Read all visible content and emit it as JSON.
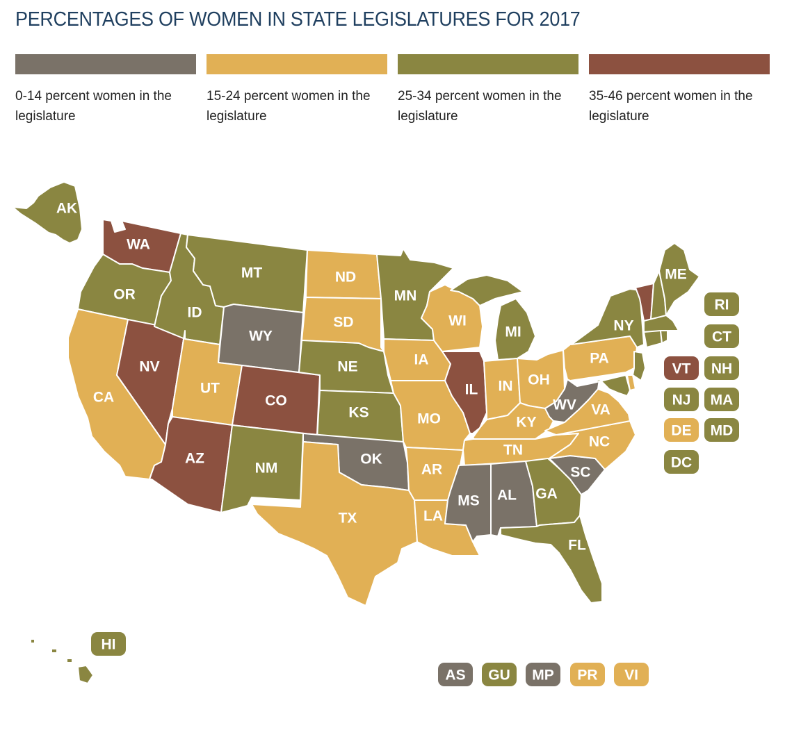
{
  "title": "PERCENTAGES OF WOMEN IN STATE LEGISLATURES FOR 2017",
  "colors": {
    "c0": "#7a7268",
    "c1": "#e1b055",
    "c2": "#8a8641",
    "c3": "#8c5140"
  },
  "legend": [
    {
      "range": "c0",
      "text": "0-14 percent women in the legislature"
    },
    {
      "range": "c1",
      "text": "15-24 percent women in the legislature"
    },
    {
      "range": "c2",
      "text": "25-34 percent women in the legislature"
    },
    {
      "range": "c3",
      "text": "35-46 percent women in the legislature"
    }
  ],
  "states": {
    "AK": "c2",
    "WA": "c3",
    "OR": "c2",
    "CA": "c1",
    "NV": "c3",
    "ID": "c2",
    "MT": "c2",
    "WY": "c0",
    "UT": "c1",
    "AZ": "c3",
    "CO": "c3",
    "NM": "c2",
    "ND": "c1",
    "SD": "c1",
    "NE": "c2",
    "KS": "c2",
    "OK": "c0",
    "TX": "c1",
    "MN": "c2",
    "IA": "c1",
    "MO": "c1",
    "AR": "c1",
    "LA": "c1",
    "WI": "c1",
    "IL": "c3",
    "MI": "c2",
    "IN": "c1",
    "OH": "c1",
    "KY": "c1",
    "TN": "c1",
    "MS": "c0",
    "AL": "c0",
    "GA": "c2",
    "FL": "c2",
    "SC": "c0",
    "NC": "c1",
    "VA": "c1",
    "WV": "c0",
    "PA": "c1",
    "NY": "c2",
    "ME": "c2",
    "VT": "c3",
    "NH": "c2",
    "MA": "c2",
    "RI": "c2",
    "CT": "c2",
    "NJ": "c2",
    "DE": "c1",
    "MD": "c2",
    "DC": "c2",
    "HI": "c2"
  },
  "badges": [
    {
      "code": "RI",
      "range": "c2"
    },
    {
      "code": "CT",
      "range": "c2"
    },
    {
      "code": "VT",
      "range": "c3"
    },
    {
      "code": "NH",
      "range": "c2"
    },
    {
      "code": "NJ",
      "range": "c2"
    },
    {
      "code": "MA",
      "range": "c2"
    },
    {
      "code": "DE",
      "range": "c1"
    },
    {
      "code": "MD",
      "range": "c2"
    },
    {
      "code": "DC",
      "range": "c2"
    },
    {
      "code": "HI",
      "range": "c2"
    },
    {
      "code": "AS",
      "range": "c0"
    },
    {
      "code": "GU",
      "range": "c2"
    },
    {
      "code": "MP",
      "range": "c0"
    },
    {
      "code": "PR",
      "range": "c1"
    },
    {
      "code": "VI",
      "range": "c1"
    }
  ]
}
